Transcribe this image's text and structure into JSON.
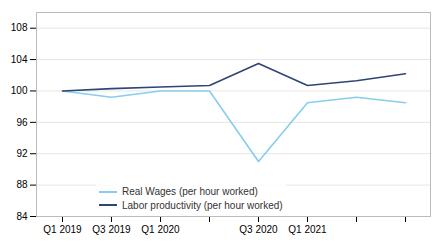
{
  "chart_data": {
    "type": "line",
    "categories": [
      "Q1 2019",
      "Q3 2019",
      "Q1 2020",
      null,
      "Q3 2020",
      "Q1 2021",
      null,
      null
    ],
    "series": [
      {
        "name": "Real Wages (per hour worked)",
        "color": "#87CEEB",
        "values": [
          100.0,
          99.2,
          100.0,
          100.0,
          91.0,
          98.5,
          99.2,
          98.5
        ]
      },
      {
        "name": "Labor productivity (per hour worked)",
        "color": "#2F4574",
        "values": [
          100.0,
          100.3,
          100.5,
          100.7,
          103.5,
          100.7,
          101.3,
          102.2
        ]
      }
    ],
    "ylim": [
      84,
      110
    ],
    "yticks": [
      84,
      88,
      92,
      96,
      100,
      104,
      108
    ],
    "grid": true,
    "legend": "lower left"
  }
}
